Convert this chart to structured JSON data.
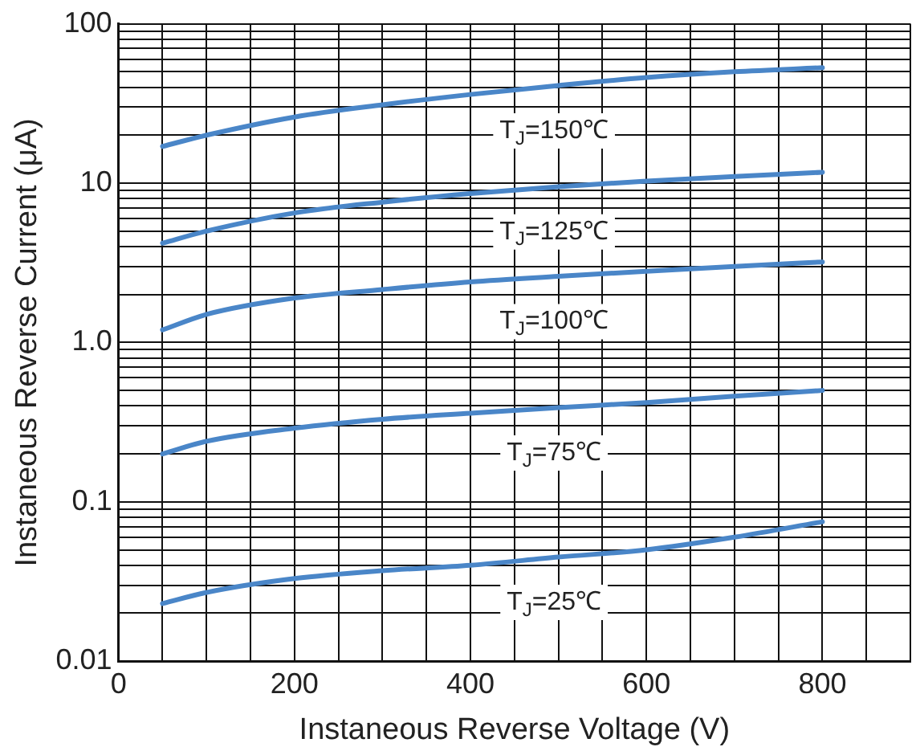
{
  "chart_data": {
    "type": "line",
    "xlabel": "Instaneous Reverse Voltage (V)",
    "ylabel": "Instaneous Reverse Current (μA)",
    "x": [
      50,
      100,
      200,
      300,
      400,
      500,
      600,
      700,
      800
    ],
    "series": [
      {
        "color": "#4a86c8",
        "values": [
          17,
          20,
          26,
          31,
          36,
          41,
          46,
          50,
          53
        ]
      },
      {
        "color": "#4a86c8",
        "values": [
          4.2,
          5.0,
          6.5,
          7.6,
          8.6,
          9.5,
          10.3,
          11,
          11.7
        ]
      },
      {
        "color": "#4a86c8",
        "values": [
          1.2,
          1.5,
          1.9,
          2.15,
          2.4,
          2.6,
          2.8,
          3.0,
          3.2
        ]
      },
      {
        "color": "#4a86c8",
        "values": [
          0.2,
          0.24,
          0.29,
          0.33,
          0.36,
          0.39,
          0.42,
          0.46,
          0.5
        ]
      },
      {
        "color": "#4a86c8",
        "values": [
          0.023,
          0.027,
          0.033,
          0.037,
          0.04,
          0.045,
          0.05,
          0.06,
          0.075
        ]
      }
    ],
    "log": "y",
    "xlim": [
      0,
      900
    ],
    "xticks": [
      0,
      {
        "value": 50,
        "label": null
      },
      200,
      {
        "value": 100,
        "label": null
      },
      {
        "value": 150,
        "label": null
      },
      {
        "value": 250,
        "label": null
      },
      {
        "value": 300,
        "label": null
      },
      {
        "value": 350,
        "label": null
      },
      400,
      {
        "value": 450,
        "label": null
      },
      {
        "value": 500,
        "label": null
      },
      {
        "value": 550,
        "label": null
      },
      600,
      {
        "value": 650,
        "label": null
      },
      {
        "value": 700,
        "label": null
      },
      {
        "value": 750,
        "label": null
      },
      800,
      {
        "value": 850,
        "label": null
      },
      {
        "value": 900,
        "label": null
      }
    ],
    "ylim": [
      0.01,
      100
    ],
    "yticks": [
      {
        "value": 0.01,
        "label": "0.01"
      },
      {
        "value": 0.02,
        "label": null
      },
      {
        "value": 0.03,
        "label": null
      },
      {
        "value": 0.04,
        "label": null
      },
      {
        "value": 0.05,
        "label": null
      },
      {
        "value": 0.06,
        "label": null
      },
      {
        "value": 0.07,
        "label": null
      },
      {
        "value": 0.08,
        "label": null
      },
      {
        "value": 0.09,
        "label": null
      },
      {
        "value": 0.1,
        "label": "0.1"
      },
      {
        "value": 0.2,
        "label": null
      },
      {
        "value": 0.3,
        "label": null
      },
      {
        "value": 0.4,
        "label": null
      },
      {
        "value": 0.5,
        "label": null
      },
      {
        "value": 0.6,
        "label": null
      },
      {
        "value": 0.7,
        "label": null
      },
      {
        "value": 0.8,
        "label": null
      },
      {
        "value": 0.9,
        "label": null
      },
      {
        "value": 1,
        "label": "1.0"
      },
      {
        "value": 2,
        "label": null
      },
      {
        "value": 3,
        "label": null
      },
      {
        "value": 4,
        "label": null
      },
      {
        "value": 5,
        "label": null
      },
      {
        "value": 6,
        "label": null
      },
      {
        "value": 7,
        "label": null
      },
      {
        "value": 8,
        "label": null
      },
      {
        "value": 9,
        "label": null
      },
      {
        "value": 10,
        "label": "10"
      },
      {
        "value": 20,
        "label": null
      },
      {
        "value": 30,
        "label": null
      },
      {
        "value": 40,
        "label": null
      },
      {
        "value": 50,
        "label": null
      },
      {
        "value": 60,
        "label": null
      },
      {
        "value": 70,
        "label": null
      },
      {
        "value": 80,
        "label": null
      },
      {
        "value": 90,
        "label": null
      },
      {
        "value": 100,
        "label": "100"
      }
    ],
    "grid": true,
    "legend": false,
    "marker": "none",
    "line_style": "solid",
    "annotations": [
      "T$_{J}$=150℃",
      "T$_{J}$=125℃",
      "T$_{J}$=100℃",
      "T$_{J}$=75℃",
      "T$_{J}$=25℃"
    ]
  }
}
